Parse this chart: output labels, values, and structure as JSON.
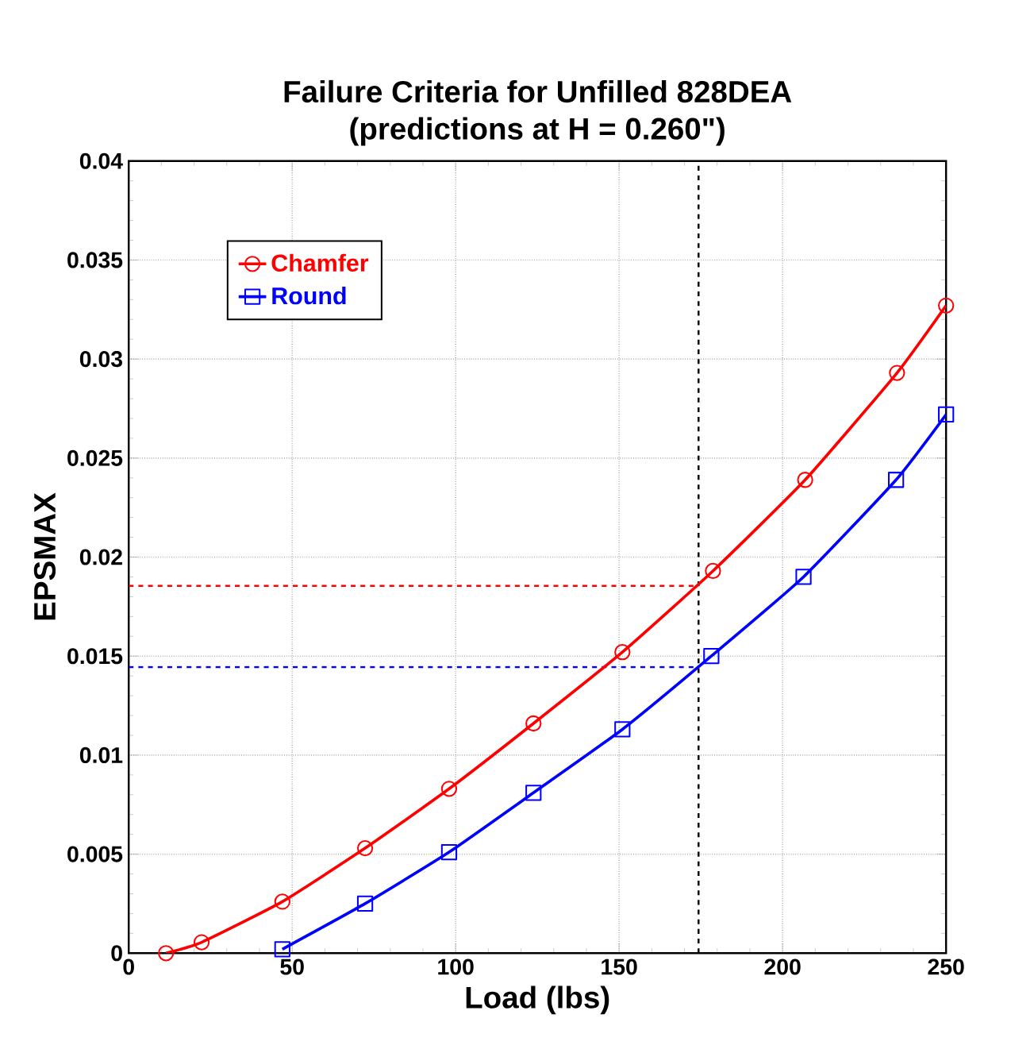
{
  "chart_data": {
    "type": "line",
    "title": "Failure Criteria for Unfilled 828DEA",
    "subtitle": "(predictions at H = 0.260\")",
    "xlabel": "Load (lbs)",
    "ylabel": "EPSMAX",
    "xlim": [
      0,
      250
    ],
    "ylim": [
      0,
      0.04
    ],
    "xticks": [
      0,
      50,
      100,
      150,
      200,
      250
    ],
    "yticks": [
      0,
      0.005,
      0.01,
      0.015,
      0.02,
      0.025,
      0.03,
      0.035,
      0.04
    ],
    "grid": true,
    "legend": "top left",
    "line_style": "solid",
    "series": [
      {
        "name": "Chamfer",
        "color": "#ff0000",
        "marker": "circle",
        "x": [
          11.4,
          22.3,
          47,
          72.3,
          98,
          123.8,
          151,
          178.7,
          206.9,
          235,
          250
        ],
        "values": [
          0,
          0.00055,
          0.0026,
          0.0053,
          0.0083,
          0.0116,
          0.0152,
          0.0193,
          0.0239,
          0.0293,
          0.0327
        ]
      },
      {
        "name": "Round",
        "color": "#0000ff",
        "marker": "square",
        "x": [
          47,
          72.3,
          98,
          123.8,
          151,
          178.2,
          206.4,
          234.7,
          250
        ],
        "values": [
          0.0002,
          0.0025,
          0.0051,
          0.0081,
          0.0113,
          0.015,
          0.019,
          0.0239,
          0.0272
        ]
      }
    ],
    "ref_lines": [
      {
        "axis": "y",
        "value": 0.01855,
        "color": "#ff0000",
        "line_style": "dashed"
      },
      {
        "axis": "y",
        "value": 0.01445,
        "color": "#0000ff",
        "line_style": "dashed"
      },
      {
        "axis": "x",
        "value": 174.3,
        "color": "#000000",
        "line_style": "dashed"
      }
    ]
  }
}
